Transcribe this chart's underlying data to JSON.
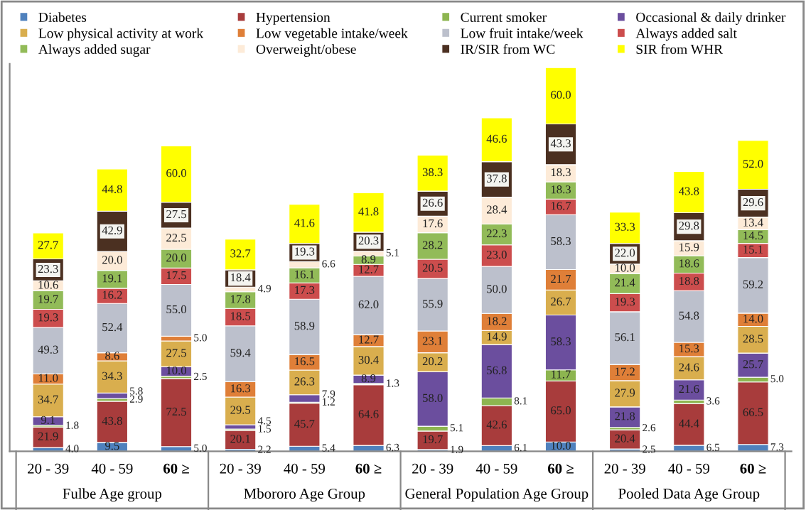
{
  "chart_data": {
    "type": "bar",
    "stacked": true,
    "legend": "top",
    "grid": false,
    "tick_labels": "x",
    "categories": [
      "20 - 39",
      "40 - 59",
      "60 ≥",
      "20 - 39",
      "40 - 59",
      "60 ≥",
      "20 - 39",
      "40 - 59",
      "60 ≥",
      "20 - 39",
      "40 - 59",
      "60 ≥"
    ],
    "annotations": [
      "Fulbe Age group",
      "Mbororo Age Group",
      "General Population Age Group",
      "Pooled Data Age Group"
    ],
    "series": [
      {
        "name": "Diabetes",
        "color": "#4f81bd",
        "values": [
          4.0,
          9.5,
          5.0,
          2.2,
          5.4,
          6.3,
          1.9,
          6.1,
          10.0,
          2.5,
          6.5,
          7.3
        ],
        "value_labels": [
          "4.0",
          "9.5",
          "5.0",
          "2.2",
          "5.4",
          "6.3",
          "1.9",
          "6.1",
          "10.0",
          "2.5",
          "6.5",
          "7.3"
        ]
      },
      {
        "name": "Hypertension",
        "color": "#a83c3c",
        "values": [
          21.9,
          43.8,
          72.5,
          20.1,
          45.7,
          64.6,
          19.7,
          42.6,
          65.0,
          20.4,
          44.4,
          66.5
        ],
        "value_labels": [
          "21.9",
          "43.8",
          "72.5",
          "20.1",
          "45.7",
          "64.6",
          "19.7",
          "42.6",
          "65.0",
          "20.4",
          "44.4",
          "66.5"
        ]
      },
      {
        "name": "Current smoker",
        "color": "#8db550",
        "values": [
          1.8,
          2.9,
          2.5,
          1.5,
          1.2,
          1.3,
          5.1,
          8.1,
          11.7,
          2.6,
          3.6,
          5.0
        ],
        "value_labels": [
          "1.8",
          "2.9",
          "2.5",
          "1.5",
          "1.2",
          "1.3",
          "5.1",
          "8.1",
          "11.7",
          "2.6",
          "3.6",
          "5.0"
        ]
      },
      {
        "name": "Occasional & daily drinker",
        "color": "#6b4e9e",
        "values": [
          9.1,
          5.8,
          10.0,
          4.5,
          7.9,
          8.9,
          58.0,
          56.8,
          58.3,
          21.8,
          21.6,
          25.7
        ],
        "value_labels": [
          "9.1",
          "5.8",
          "10.0",
          "4.5",
          "7.9",
          "8.9",
          "58.0",
          "56.8",
          "58.3",
          "21.8",
          "21.6",
          "25.7"
        ]
      },
      {
        "name": "Low physical activity at work",
        "color": "#d9ae4e",
        "values": [
          34.7,
          34.3,
          27.5,
          29.5,
          26.3,
          30.4,
          20.2,
          14.9,
          26.7,
          27.9,
          24.6,
          28.5
        ],
        "value_labels": [
          "34.7",
          "34.3",
          "27.5",
          "29.5",
          "26.3",
          "30.4",
          "20.2",
          "14.9",
          "26.7",
          "27.9",
          "24.6",
          "28.5"
        ]
      },
      {
        "name": "Low vegetable intake/week",
        "color": "#df7f38",
        "values": [
          11.0,
          8.6,
          5.0,
          16.3,
          16.5,
          12.7,
          23.1,
          18.2,
          21.7,
          17.2,
          15.3,
          14.0
        ],
        "value_labels": [
          "11.0",
          "8.6",
          "5.0",
          "16.3",
          "16.5",
          "12.7",
          "23.1",
          "18.2",
          "21.7",
          "17.2",
          "15.3",
          "14.0"
        ]
      },
      {
        "name": "Low fruit intake/week",
        "color": "#bcc0cc",
        "values": [
          49.3,
          52.4,
          55.0,
          59.4,
          58.9,
          62.0,
          55.9,
          50.0,
          58.3,
          56.1,
          54.8,
          59.2
        ],
        "value_labels": [
          "49.3",
          "52.4",
          "55.0",
          "59.4",
          "58.9",
          "62.0",
          "55.9",
          "50.0",
          "58.3",
          "56.1",
          "54.8",
          "59.2"
        ]
      },
      {
        "name": "Always added salt",
        "color": "#cc4d4d",
        "values": [
          19.3,
          16.2,
          17.5,
          18.5,
          17.3,
          12.7,
          20.5,
          23.0,
          16.7,
          19.3,
          18.8,
          15.1
        ],
        "value_labels": [
          "19.3",
          "16.2",
          "17.5",
          "18.5",
          "17.3",
          "12.7",
          "20.5",
          "23.0",
          "16.7",
          "19.3",
          "18.8",
          "15.1"
        ]
      },
      {
        "name": "Always added sugar",
        "color": "#92bb58",
        "values": [
          19.7,
          19.1,
          20.0,
          17.8,
          16.1,
          8.9,
          28.2,
          22.3,
          18.3,
          21.4,
          18.6,
          14.5
        ],
        "value_labels": [
          "19.7",
          "19.1",
          "20.0",
          "17.8",
          "16.1",
          "8.9",
          "28.2",
          "22.3",
          "18.3",
          "21.4",
          "18.6",
          "14.5"
        ]
      },
      {
        "name": "Overweight/obese",
        "color": "#fdebd8",
        "values": [
          10.6,
          20.0,
          22.5,
          4.9,
          6.6,
          5.1,
          17.6,
          28.4,
          18.3,
          10.0,
          15.9,
          13.4
        ],
        "value_labels": [
          "10.6",
          "20.0",
          "22.5",
          "4.9",
          "6.6",
          "5.1",
          "17.6",
          "28.4",
          "18.3",
          "10.0",
          "15.9",
          "13.4"
        ]
      },
      {
        "name": "IR/SIR from WC",
        "color": "#4b3021",
        "values": [
          23.3,
          42.9,
          27.5,
          18.4,
          19.3,
          20.3,
          26.6,
          37.8,
          43.3,
          22.0,
          29.8,
          29.6
        ],
        "value_labels": [
          "23.3",
          "42.9",
          "27.5",
          "18.4",
          "19.3",
          "20.3",
          "26.6",
          "37.8",
          "43.3",
          "22.0",
          "29.8",
          "29.6"
        ]
      },
      {
        "name": "SIR from WHR",
        "color": "#ffff00",
        "values": [
          27.7,
          44.8,
          60.0,
          32.7,
          41.6,
          41.8,
          38.3,
          46.6,
          60.0,
          33.3,
          43.8,
          52.0
        ],
        "value_labels": [
          "27.7",
          "44.8",
          "60.0",
          "32.7",
          "41.6",
          "41.8",
          "38.3",
          "46.6",
          "60.0",
          "33.3",
          "43.8",
          "52.0"
        ]
      }
    ]
  }
}
